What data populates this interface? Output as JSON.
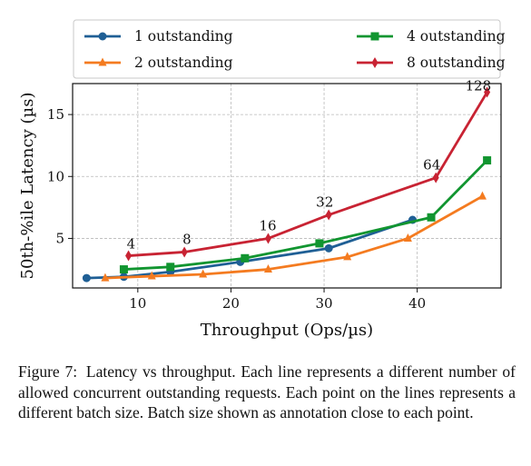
{
  "chart_data": {
    "type": "line",
    "title": "",
    "xlabel": "Throughput (Ops/µs)",
    "ylabel": "50th-%ile Latency (µs)",
    "xlim": [
      3,
      49
    ],
    "ylim": [
      1,
      17.5
    ],
    "xticks": [
      10,
      20,
      30,
      40
    ],
    "yticks": [
      5,
      10,
      15
    ],
    "grid": true,
    "legend": "top, outside plot, 2 columns",
    "series": [
      {
        "name": "1 outstanding",
        "color": "#1f5f95",
        "marker": "circle",
        "points": [
          [
            4.5,
            1.8
          ],
          [
            8.5,
            1.9
          ],
          [
            13.5,
            2.3
          ],
          [
            21.0,
            3.1
          ],
          [
            30.5,
            4.2
          ],
          [
            39.5,
            6.5
          ]
        ]
      },
      {
        "name": "2 outstanding",
        "color": "#f47b20",
        "marker": "triangle",
        "points": [
          [
            6.5,
            1.8
          ],
          [
            11.5,
            1.95
          ],
          [
            17.0,
            2.1
          ],
          [
            24.0,
            2.5
          ],
          [
            32.5,
            3.5
          ],
          [
            39.0,
            5.0
          ],
          [
            47.0,
            8.4
          ]
        ]
      },
      {
        "name": "4 outstanding",
        "color": "#119530",
        "marker": "square",
        "points": [
          [
            8.5,
            2.5
          ],
          [
            13.5,
            2.7
          ],
          [
            21.5,
            3.4
          ],
          [
            29.5,
            4.6
          ],
          [
            41.5,
            6.7
          ],
          [
            47.5,
            11.3
          ]
        ]
      },
      {
        "name": "8 outstanding",
        "color": "#c82333",
        "marker": "diamond",
        "points": [
          [
            9.0,
            3.6
          ],
          [
            15.0,
            3.9
          ],
          [
            24.0,
            5.0
          ],
          [
            30.5,
            6.9
          ],
          [
            42.0,
            9.9
          ],
          [
            47.5,
            16.8
          ]
        ]
      }
    ],
    "annotations": [
      {
        "text": "4",
        "x": 9.0,
        "y": 3.6,
        "dx": -2,
        "dy": -8
      },
      {
        "text": "8",
        "x": 15.0,
        "y": 3.9,
        "dx": -2,
        "dy": -9
      },
      {
        "text": "16",
        "x": 24.0,
        "y": 5.0,
        "dx": -10,
        "dy": -9
      },
      {
        "text": "32",
        "x": 30.5,
        "y": 6.9,
        "dx": -14,
        "dy": -9
      },
      {
        "text": "64",
        "x": 42.0,
        "y": 9.9,
        "dx": -14,
        "dy": -9
      },
      {
        "text": "128",
        "x": 47.5,
        "y": 16.8,
        "dx": -24,
        "dy": -2
      }
    ]
  },
  "caption": {
    "label": "Figure 7:",
    "text": "Latency vs throughput. Each line represents a different number of allowed concurrent outstanding requests. Each point on the lines represents a different batch size. Batch size shown as annotation close to each point."
  }
}
